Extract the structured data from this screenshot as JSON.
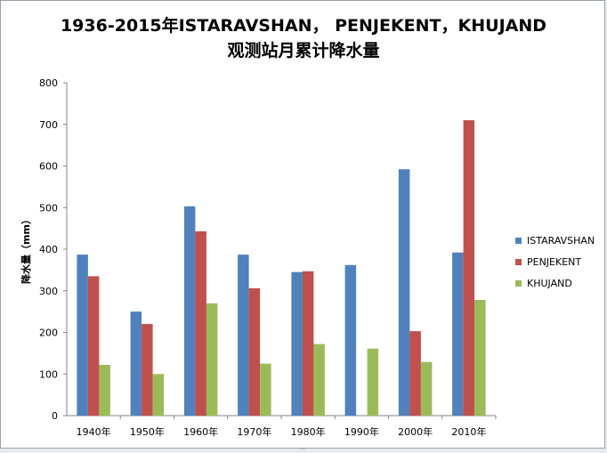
{
  "chart_title": {
    "line1": "1936-2015年ISTARAVSHAN， PENJEKENT，KHUJAND",
    "line2": "观测站月累计降水量"
  },
  "colors": {
    "ISTARAVSHAN": "#4f81bd",
    "PENJEKENT": "#c0504d",
    "KHUJAND": "#9bbb59"
  },
  "chart_data": {
    "type": "bar",
    "title": "1936-2015年ISTARAVSHAN， PENJEKENT，KHUJAND 观测站月累计降水量",
    "xlabel": "",
    "ylabel": "降水量（mm）",
    "ylim": [
      0,
      800
    ],
    "yticks": [
      0,
      100,
      200,
      300,
      400,
      500,
      600,
      700,
      800
    ],
    "grid": false,
    "legend_position": "right",
    "categories": [
      "1940年",
      "1950年",
      "1960年",
      "1970年",
      "1980年",
      "1990年",
      "2000年",
      "2010年"
    ],
    "series": [
      {
        "name": "ISTARAVSHAN",
        "values": [
          387,
          250,
          503,
          387,
          345,
          362,
          592,
          392
        ]
      },
      {
        "name": "PENJEKENT",
        "values": [
          335,
          220,
          443,
          306,
          347,
          null,
          203,
          710
        ]
      },
      {
        "name": "KHUJAND",
        "values": [
          122,
          100,
          270,
          125,
          172,
          161,
          129,
          278
        ]
      }
    ]
  }
}
